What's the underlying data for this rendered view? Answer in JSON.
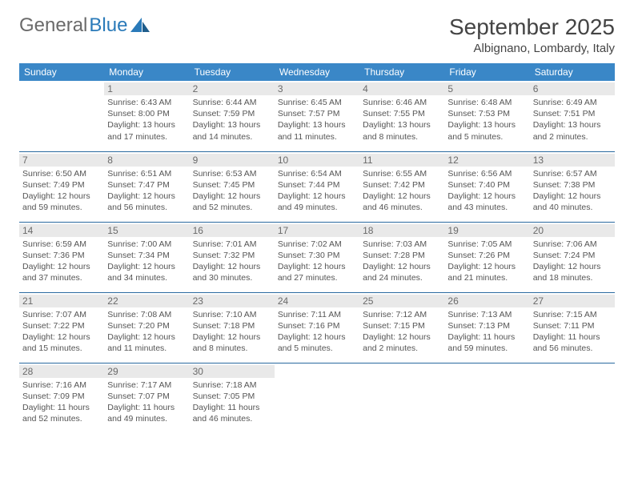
{
  "logo": {
    "part1": "General",
    "part2": "Blue"
  },
  "title": "September 2025",
  "location": "Albignano, Lombardy, Italy",
  "colors": {
    "header_bg": "#3a87c7",
    "row_border": "#2a6aa0",
    "daynum_bg": "#e9e9e9",
    "text": "#555555"
  },
  "weekdays": [
    "Sunday",
    "Monday",
    "Tuesday",
    "Wednesday",
    "Thursday",
    "Friday",
    "Saturday"
  ],
  "weeks": [
    [
      {
        "n": "",
        "sr": "",
        "ss": "",
        "d1": "",
        "d2": ""
      },
      {
        "n": "1",
        "sr": "Sunrise: 6:43 AM",
        "ss": "Sunset: 8:00 PM",
        "d1": "Daylight: 13 hours",
        "d2": "and 17 minutes."
      },
      {
        "n": "2",
        "sr": "Sunrise: 6:44 AM",
        "ss": "Sunset: 7:59 PM",
        "d1": "Daylight: 13 hours",
        "d2": "and 14 minutes."
      },
      {
        "n": "3",
        "sr": "Sunrise: 6:45 AM",
        "ss": "Sunset: 7:57 PM",
        "d1": "Daylight: 13 hours",
        "d2": "and 11 minutes."
      },
      {
        "n": "4",
        "sr": "Sunrise: 6:46 AM",
        "ss": "Sunset: 7:55 PM",
        "d1": "Daylight: 13 hours",
        "d2": "and 8 minutes."
      },
      {
        "n": "5",
        "sr": "Sunrise: 6:48 AM",
        "ss": "Sunset: 7:53 PM",
        "d1": "Daylight: 13 hours",
        "d2": "and 5 minutes."
      },
      {
        "n": "6",
        "sr": "Sunrise: 6:49 AM",
        "ss": "Sunset: 7:51 PM",
        "d1": "Daylight: 13 hours",
        "d2": "and 2 minutes."
      }
    ],
    [
      {
        "n": "7",
        "sr": "Sunrise: 6:50 AM",
        "ss": "Sunset: 7:49 PM",
        "d1": "Daylight: 12 hours",
        "d2": "and 59 minutes."
      },
      {
        "n": "8",
        "sr": "Sunrise: 6:51 AM",
        "ss": "Sunset: 7:47 PM",
        "d1": "Daylight: 12 hours",
        "d2": "and 56 minutes."
      },
      {
        "n": "9",
        "sr": "Sunrise: 6:53 AM",
        "ss": "Sunset: 7:45 PM",
        "d1": "Daylight: 12 hours",
        "d2": "and 52 minutes."
      },
      {
        "n": "10",
        "sr": "Sunrise: 6:54 AM",
        "ss": "Sunset: 7:44 PM",
        "d1": "Daylight: 12 hours",
        "d2": "and 49 minutes."
      },
      {
        "n": "11",
        "sr": "Sunrise: 6:55 AM",
        "ss": "Sunset: 7:42 PM",
        "d1": "Daylight: 12 hours",
        "d2": "and 46 minutes."
      },
      {
        "n": "12",
        "sr": "Sunrise: 6:56 AM",
        "ss": "Sunset: 7:40 PM",
        "d1": "Daylight: 12 hours",
        "d2": "and 43 minutes."
      },
      {
        "n": "13",
        "sr": "Sunrise: 6:57 AM",
        "ss": "Sunset: 7:38 PM",
        "d1": "Daylight: 12 hours",
        "d2": "and 40 minutes."
      }
    ],
    [
      {
        "n": "14",
        "sr": "Sunrise: 6:59 AM",
        "ss": "Sunset: 7:36 PM",
        "d1": "Daylight: 12 hours",
        "d2": "and 37 minutes."
      },
      {
        "n": "15",
        "sr": "Sunrise: 7:00 AM",
        "ss": "Sunset: 7:34 PM",
        "d1": "Daylight: 12 hours",
        "d2": "and 34 minutes."
      },
      {
        "n": "16",
        "sr": "Sunrise: 7:01 AM",
        "ss": "Sunset: 7:32 PM",
        "d1": "Daylight: 12 hours",
        "d2": "and 30 minutes."
      },
      {
        "n": "17",
        "sr": "Sunrise: 7:02 AM",
        "ss": "Sunset: 7:30 PM",
        "d1": "Daylight: 12 hours",
        "d2": "and 27 minutes."
      },
      {
        "n": "18",
        "sr": "Sunrise: 7:03 AM",
        "ss": "Sunset: 7:28 PM",
        "d1": "Daylight: 12 hours",
        "d2": "and 24 minutes."
      },
      {
        "n": "19",
        "sr": "Sunrise: 7:05 AM",
        "ss": "Sunset: 7:26 PM",
        "d1": "Daylight: 12 hours",
        "d2": "and 21 minutes."
      },
      {
        "n": "20",
        "sr": "Sunrise: 7:06 AM",
        "ss": "Sunset: 7:24 PM",
        "d1": "Daylight: 12 hours",
        "d2": "and 18 minutes."
      }
    ],
    [
      {
        "n": "21",
        "sr": "Sunrise: 7:07 AM",
        "ss": "Sunset: 7:22 PM",
        "d1": "Daylight: 12 hours",
        "d2": "and 15 minutes."
      },
      {
        "n": "22",
        "sr": "Sunrise: 7:08 AM",
        "ss": "Sunset: 7:20 PM",
        "d1": "Daylight: 12 hours",
        "d2": "and 11 minutes."
      },
      {
        "n": "23",
        "sr": "Sunrise: 7:10 AM",
        "ss": "Sunset: 7:18 PM",
        "d1": "Daylight: 12 hours",
        "d2": "and 8 minutes."
      },
      {
        "n": "24",
        "sr": "Sunrise: 7:11 AM",
        "ss": "Sunset: 7:16 PM",
        "d1": "Daylight: 12 hours",
        "d2": "and 5 minutes."
      },
      {
        "n": "25",
        "sr": "Sunrise: 7:12 AM",
        "ss": "Sunset: 7:15 PM",
        "d1": "Daylight: 12 hours",
        "d2": "and 2 minutes."
      },
      {
        "n": "26",
        "sr": "Sunrise: 7:13 AM",
        "ss": "Sunset: 7:13 PM",
        "d1": "Daylight: 11 hours",
        "d2": "and 59 minutes."
      },
      {
        "n": "27",
        "sr": "Sunrise: 7:15 AM",
        "ss": "Sunset: 7:11 PM",
        "d1": "Daylight: 11 hours",
        "d2": "and 56 minutes."
      }
    ],
    [
      {
        "n": "28",
        "sr": "Sunrise: 7:16 AM",
        "ss": "Sunset: 7:09 PM",
        "d1": "Daylight: 11 hours",
        "d2": "and 52 minutes."
      },
      {
        "n": "29",
        "sr": "Sunrise: 7:17 AM",
        "ss": "Sunset: 7:07 PM",
        "d1": "Daylight: 11 hours",
        "d2": "and 49 minutes."
      },
      {
        "n": "30",
        "sr": "Sunrise: 7:18 AM",
        "ss": "Sunset: 7:05 PM",
        "d1": "Daylight: 11 hours",
        "d2": "and 46 minutes."
      },
      {
        "n": "",
        "sr": "",
        "ss": "",
        "d1": "",
        "d2": ""
      },
      {
        "n": "",
        "sr": "",
        "ss": "",
        "d1": "",
        "d2": ""
      },
      {
        "n": "",
        "sr": "",
        "ss": "",
        "d1": "",
        "d2": ""
      },
      {
        "n": "",
        "sr": "",
        "ss": "",
        "d1": "",
        "d2": ""
      }
    ]
  ]
}
